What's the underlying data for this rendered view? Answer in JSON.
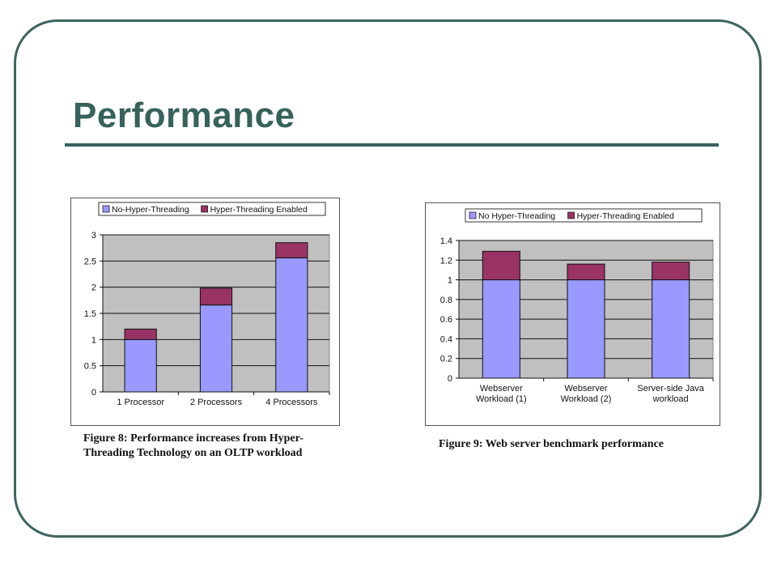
{
  "slide": {
    "title": "Performance",
    "accent_color": "#36625c"
  },
  "colors": {
    "no_ht": "#9999ff",
    "ht": "#993366",
    "plot_bg": "#c0c0c0"
  },
  "chart_data": [
    {
      "type": "bar",
      "stacked": true,
      "categories": [
        "1 Processor",
        "2 Processors",
        "4 Processors"
      ],
      "series": [
        {
          "name": "No-Hyper-Threading",
          "values": [
            1.0,
            1.66,
            2.56
          ]
        },
        {
          "name": "Hyper-Threading Enabled",
          "values": [
            0.2,
            0.32,
            0.29
          ]
        }
      ],
      "ylim": [
        0,
        3
      ],
      "yticks": [
        "0",
        "0.5",
        "1",
        "1.5",
        "2",
        "2.5",
        "3"
      ],
      "legend": "top",
      "grid": true,
      "caption": "Figure 8: Performance increases from Hyper-Threading Technology on an OLTP workload"
    },
    {
      "type": "bar",
      "stacked": true,
      "categories": [
        [
          "Webserver",
          "Workload (1)"
        ],
        [
          "Webserver",
          "Workload (2)"
        ],
        [
          "Server-side Java",
          "workload"
        ]
      ],
      "series": [
        {
          "name": "No Hyper-Threading",
          "values": [
            1.0,
            1.0,
            1.0
          ]
        },
        {
          "name": "Hyper-Threading Enabled",
          "values": [
            0.29,
            0.16,
            0.18
          ]
        }
      ],
      "ylim": [
        0,
        1.4
      ],
      "yticks": [
        "0",
        "0.2",
        "0.4",
        "0.6",
        "0.8",
        "1",
        "1.2",
        "1.4"
      ],
      "legend": "top",
      "grid": true,
      "caption": "Figure 9: Web server benchmark performance"
    }
  ]
}
